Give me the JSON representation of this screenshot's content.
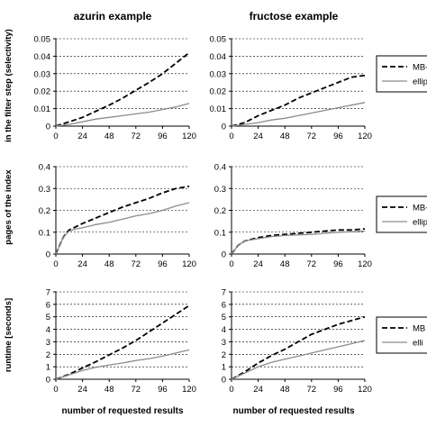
{
  "columns": [
    "azurin example",
    "fructose example"
  ],
  "row_labels": [
    "in the filter step (selectivity)",
    "pages of the index",
    "runtime [seconds]"
  ],
  "xlabel": "number of requested results",
  "legend": [
    "MB-",
    "ellip"
  ],
  "legend_row3": [
    "MB",
    "elli"
  ],
  "colors": {
    "mb": "#000000",
    "ellip": "#8c8c8c",
    "grid": "#000000"
  },
  "chart_data": [
    {
      "type": "line",
      "row": 0,
      "col": 0,
      "title": "azurin example",
      "ylabel": "in the filter step (selectivity)",
      "xlabel": "",
      "xlim": [
        0,
        120
      ],
      "ylim": [
        0,
        0.05
      ],
      "xticks": [
        "0",
        "24",
        "48",
        "72",
        "96",
        "120"
      ],
      "yticks": [
        "0",
        "0.01",
        "0.02",
        "0.03",
        "0.04",
        "0.05"
      ],
      "grid": true,
      "series": [
        {
          "name": "MB-",
          "style": "dashed",
          "x": [
            0,
            12,
            24,
            36,
            48,
            60,
            72,
            84,
            96,
            108,
            120
          ],
          "y": [
            0,
            0.0025,
            0.005,
            0.0085,
            0.012,
            0.016,
            0.0205,
            0.025,
            0.03,
            0.036,
            0.042
          ]
        },
        {
          "name": "ellip",
          "style": "solid",
          "x": [
            0,
            12,
            24,
            36,
            48,
            60,
            72,
            84,
            96,
            108,
            120
          ],
          "y": [
            0,
            0.001,
            0.0025,
            0.004,
            0.005,
            0.006,
            0.007,
            0.008,
            0.0095,
            0.011,
            0.013
          ]
        }
      ]
    },
    {
      "type": "line",
      "row": 0,
      "col": 1,
      "title": "fructose example",
      "ylabel": "",
      "xlabel": "",
      "xlim": [
        0,
        120
      ],
      "ylim": [
        0,
        0.05
      ],
      "xticks": [
        "0",
        "24",
        "48",
        "72",
        "96",
        "120"
      ],
      "yticks": [
        "0",
        "0.01",
        "0.02",
        "0.03",
        "0.04",
        "0.05"
      ],
      "grid": true,
      "series": [
        {
          "name": "MB-",
          "style": "dashed",
          "x": [
            0,
            12,
            24,
            36,
            48,
            60,
            72,
            84,
            96,
            108,
            120
          ],
          "y": [
            0,
            0.002,
            0.006,
            0.009,
            0.012,
            0.016,
            0.019,
            0.022,
            0.025,
            0.028,
            0.029
          ]
        },
        {
          "name": "ellip",
          "style": "solid",
          "x": [
            0,
            12,
            24,
            36,
            48,
            60,
            72,
            84,
            96,
            108,
            120
          ],
          "y": [
            0,
            0.001,
            0.002,
            0.0035,
            0.0045,
            0.006,
            0.0075,
            0.009,
            0.0105,
            0.012,
            0.0135
          ]
        }
      ]
    },
    {
      "type": "line",
      "row": 1,
      "col": 0,
      "title": "",
      "ylabel": "pages of the index",
      "xlabel": "",
      "xlim": [
        0,
        120
      ],
      "ylim": [
        0,
        0.4
      ],
      "xticks": [
        "0",
        "24",
        "48",
        "72",
        "96",
        "120"
      ],
      "yticks": [
        "0",
        "0.1",
        "0.2",
        "0.3",
        "0.4"
      ],
      "grid": true,
      "series": [
        {
          "name": "MB-",
          "style": "dashed",
          "x": [
            0,
            3,
            6,
            9,
            12,
            18,
            24,
            36,
            48,
            60,
            72,
            84,
            96,
            108,
            120
          ],
          "y": [
            0,
            0.035,
            0.07,
            0.095,
            0.11,
            0.125,
            0.14,
            0.165,
            0.19,
            0.215,
            0.235,
            0.255,
            0.28,
            0.3,
            0.31
          ]
        },
        {
          "name": "ellip",
          "style": "solid",
          "x": [
            0,
            3,
            6,
            9,
            12,
            18,
            24,
            36,
            48,
            60,
            72,
            84,
            96,
            108,
            120
          ],
          "y": [
            0,
            0.035,
            0.07,
            0.09,
            0.105,
            0.115,
            0.12,
            0.135,
            0.145,
            0.16,
            0.175,
            0.185,
            0.2,
            0.22,
            0.235
          ]
        }
      ]
    },
    {
      "type": "line",
      "row": 1,
      "col": 1,
      "title": "",
      "ylabel": "",
      "xlabel": "",
      "xlim": [
        0,
        120
      ],
      "ylim": [
        0,
        0.4
      ],
      "xticks": [
        "0",
        "24",
        "48",
        "72",
        "96",
        "120"
      ],
      "yticks": [
        "0",
        "0.1",
        "0.2",
        "0.3",
        "0.4"
      ],
      "grid": true,
      "series": [
        {
          "name": "MB-",
          "style": "dashed",
          "x": [
            0,
            6,
            12,
            24,
            36,
            48,
            60,
            72,
            84,
            96,
            108,
            120
          ],
          "y": [
            0,
            0.04,
            0.06,
            0.075,
            0.085,
            0.09,
            0.095,
            0.1,
            0.105,
            0.11,
            0.11,
            0.115
          ]
        },
        {
          "name": "ellip",
          "style": "solid",
          "x": [
            0,
            6,
            12,
            24,
            36,
            48,
            60,
            72,
            84,
            96,
            108,
            120
          ],
          "y": [
            0,
            0.04,
            0.06,
            0.07,
            0.08,
            0.085,
            0.088,
            0.09,
            0.095,
            0.1,
            0.102,
            0.105
          ]
        }
      ]
    },
    {
      "type": "line",
      "row": 2,
      "col": 0,
      "title": "",
      "ylabel": "runtime [seconds]",
      "xlabel": "number of requested results",
      "xlim": [
        0,
        120
      ],
      "ylim": [
        0,
        7
      ],
      "xticks": [
        "0",
        "24",
        "48",
        "72",
        "96",
        "120"
      ],
      "yticks": [
        "0",
        "1",
        "2",
        "3",
        "4",
        "5",
        "6",
        "7"
      ],
      "grid": true,
      "series": [
        {
          "name": "MB",
          "style": "dashed",
          "x": [
            0,
            12,
            24,
            36,
            48,
            60,
            72,
            84,
            96,
            108,
            120
          ],
          "y": [
            0,
            0.4,
            0.9,
            1.4,
            1.95,
            2.5,
            3.1,
            3.8,
            4.5,
            5.2,
            5.9
          ]
        },
        {
          "name": "elli",
          "style": "solid",
          "x": [
            0,
            12,
            24,
            36,
            48,
            60,
            72,
            84,
            96,
            108,
            120
          ],
          "y": [
            0,
            0.35,
            0.7,
            0.95,
            1.15,
            1.3,
            1.5,
            1.65,
            1.85,
            2.1,
            2.35
          ]
        }
      ]
    },
    {
      "type": "line",
      "row": 2,
      "col": 1,
      "title": "",
      "ylabel": "",
      "xlabel": "number of requested results",
      "xlim": [
        0,
        120
      ],
      "ylim": [
        0,
        7
      ],
      "xticks": [
        "0",
        "24",
        "48",
        "72",
        "96",
        "120"
      ],
      "yticks": [
        "0",
        "1",
        "2",
        "3",
        "4",
        "5",
        "6",
        "7"
      ],
      "grid": true,
      "series": [
        {
          "name": "MB",
          "style": "dashed",
          "x": [
            0,
            12,
            24,
            36,
            48,
            60,
            72,
            84,
            96,
            108,
            120
          ],
          "y": [
            0,
            0.6,
            1.3,
            1.9,
            2.4,
            3.0,
            3.6,
            4.0,
            4.4,
            4.7,
            5.0
          ]
        },
        {
          "name": "elli",
          "style": "solid",
          "x": [
            0,
            12,
            24,
            36,
            48,
            60,
            72,
            84,
            96,
            108,
            120
          ],
          "y": [
            0,
            0.5,
            1.0,
            1.35,
            1.6,
            1.85,
            2.1,
            2.35,
            2.6,
            2.85,
            3.1
          ]
        }
      ]
    }
  ]
}
